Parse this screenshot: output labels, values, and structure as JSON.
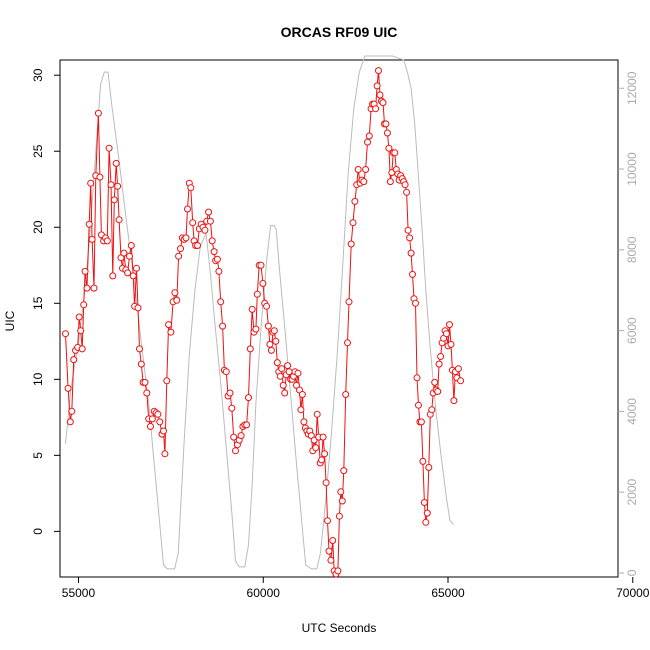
{
  "chart_data": {
    "type": "line",
    "title": "ORCAS RF09 UIC",
    "xlabel": "UTC Seconds",
    "ylabel": "UIC",
    "xlim": [
      54500,
      69600
    ],
    "ylim": [
      -3,
      31
    ],
    "y2lim": [
      -100,
      12700
    ],
    "x_ticks": [
      55000,
      60000,
      65000,
      70000
    ],
    "y_ticks": [
      0,
      5,
      10,
      15,
      20,
      25,
      30
    ],
    "y2_ticks": [
      0,
      2000,
      4000,
      6000,
      8000,
      10000,
      12000
    ],
    "colors": {
      "uic": "#ee1111",
      "altitude": "#bbbbbb"
    },
    "series": [
      {
        "role": "uic",
        "axis": "left",
        "points": [
          [
            54650,
            13.0
          ],
          [
            54720,
            9.4
          ],
          [
            54780,
            7.2
          ],
          [
            54820,
            7.9
          ],
          [
            54870,
            11.3
          ],
          [
            54920,
            11.9
          ],
          [
            54980,
            12.1
          ],
          [
            55020,
            14.1
          ],
          [
            55060,
            13.2
          ],
          [
            55100,
            12.0
          ],
          [
            55140,
            14.9
          ],
          [
            55180,
            17.1
          ],
          [
            55230,
            16.0
          ],
          [
            55290,
            20.2
          ],
          [
            55330,
            22.9
          ],
          [
            55370,
            19.2
          ],
          [
            55420,
            16.0
          ],
          [
            55470,
            23.4
          ],
          [
            55540,
            27.5
          ],
          [
            55580,
            23.3
          ],
          [
            55620,
            19.5
          ],
          [
            55680,
            19.1
          ],
          [
            55730,
            19.3
          ],
          [
            55780,
            19.1
          ],
          [
            55830,
            25.2
          ],
          [
            55880,
            22.8
          ],
          [
            55930,
            16.8
          ],
          [
            55970,
            21.8
          ],
          [
            56020,
            24.2
          ],
          [
            56060,
            22.7
          ],
          [
            56100,
            20.5
          ],
          [
            56150,
            18.0
          ],
          [
            56190,
            17.3
          ],
          [
            56230,
            18.3
          ],
          [
            56280,
            17.2
          ],
          [
            56330,
            17.0
          ],
          [
            56380,
            18.1
          ],
          [
            56430,
            18.8
          ],
          [
            56480,
            16.8
          ],
          [
            56520,
            14.8
          ],
          [
            56570,
            17.3
          ],
          [
            56610,
            14.7
          ],
          [
            56650,
            12.0
          ],
          [
            56700,
            11.0
          ],
          [
            56750,
            9.8
          ],
          [
            56800,
            9.8
          ],
          [
            56850,
            9.1
          ],
          [
            56900,
            7.4
          ],
          [
            56950,
            6.9
          ],
          [
            57000,
            7.4
          ],
          [
            57050,
            7.9
          ],
          [
            57100,
            7.8
          ],
          [
            57150,
            7.7
          ],
          [
            57200,
            7.2
          ],
          [
            57260,
            6.4
          ],
          [
            57300,
            6.6
          ],
          [
            57340,
            5.1
          ],
          [
            57390,
            9.9
          ],
          [
            57440,
            13.6
          ],
          [
            57500,
            13.1
          ],
          [
            57560,
            15.1
          ],
          [
            57610,
            15.7
          ],
          [
            57660,
            15.2
          ],
          [
            57710,
            18.1
          ],
          [
            57760,
            18.6
          ],
          [
            57810,
            19.3
          ],
          [
            57860,
            19.2
          ],
          [
            57910,
            19.3
          ],
          [
            57950,
            21.2
          ],
          [
            58000,
            22.9
          ],
          [
            58040,
            22.6
          ],
          [
            58090,
            20.3
          ],
          [
            58130,
            19.1
          ],
          [
            58170,
            18.8
          ],
          [
            58220,
            18.8
          ],
          [
            58270,
            19.9
          ],
          [
            58320,
            20.2
          ],
          [
            58370,
            20.0
          ],
          [
            58420,
            19.8
          ],
          [
            58470,
            20.4
          ],
          [
            58520,
            21.0
          ],
          [
            58570,
            20.4
          ],
          [
            58620,
            19.1
          ],
          [
            58670,
            18.4
          ],
          [
            58710,
            17.8
          ],
          [
            58760,
            17.9
          ],
          [
            58800,
            17.1
          ],
          [
            58850,
            15.1
          ],
          [
            58900,
            13.5
          ],
          [
            58950,
            10.6
          ],
          [
            59000,
            10.5
          ],
          [
            59050,
            8.9
          ],
          [
            59100,
            9.1
          ],
          [
            59150,
            8.1
          ],
          [
            59200,
            6.2
          ],
          [
            59250,
            5.3
          ],
          [
            59300,
            5.7
          ],
          [
            59350,
            6.0
          ],
          [
            59400,
            6.3
          ],
          [
            59450,
            6.9
          ],
          [
            59500,
            7.0
          ],
          [
            59550,
            7.0
          ],
          [
            59600,
            8.8
          ],
          [
            59650,
            12.0
          ],
          [
            59700,
            14.6
          ],
          [
            59750,
            13.1
          ],
          [
            59800,
            13.3
          ],
          [
            59840,
            15.6
          ],
          [
            59890,
            17.5
          ],
          [
            59940,
            17.5
          ],
          [
            59990,
            16.3
          ],
          [
            60040,
            15.0
          ],
          [
            60090,
            14.8
          ],
          [
            60140,
            13.5
          ],
          [
            60180,
            12.3
          ],
          [
            60220,
            11.9
          ],
          [
            60260,
            13.1
          ],
          [
            60300,
            13.2
          ],
          [
            60340,
            12.5
          ],
          [
            60380,
            11.1
          ],
          [
            60420,
            10.5
          ],
          [
            60460,
            10.2
          ],
          [
            60500,
            10.7
          ],
          [
            60540,
            9.6
          ],
          [
            60580,
            9.1
          ],
          [
            60620,
            10.3
          ],
          [
            60660,
            10.9
          ],
          [
            60700,
            10.5
          ],
          [
            60740,
            10.0
          ],
          [
            60780,
            10.0
          ],
          [
            60820,
            10.2
          ],
          [
            60860,
            10.5
          ],
          [
            60900,
            9.6
          ],
          [
            60940,
            10.4
          ],
          [
            60980,
            9.3
          ],
          [
            61020,
            8.0
          ],
          [
            61060,
            9.0
          ],
          [
            61100,
            7.2
          ],
          [
            61140,
            6.8
          ],
          [
            61180,
            6.6
          ],
          [
            61220,
            6.4
          ],
          [
            61260,
            6.6
          ],
          [
            61300,
            6.3
          ],
          [
            61340,
            5.3
          ],
          [
            61380,
            6.0
          ],
          [
            61420,
            5.5
          ],
          [
            61460,
            7.7
          ],
          [
            61500,
            6.2
          ],
          [
            61540,
            4.5
          ],
          [
            61580,
            4.7
          ],
          [
            61620,
            6.2
          ],
          [
            61660,
            5.1
          ],
          [
            61700,
            3.2
          ],
          [
            61740,
            0.7
          ],
          [
            61780,
            -1.3
          ],
          [
            61830,
            -1.9
          ],
          [
            61880,
            -0.6
          ],
          [
            61920,
            -2.6
          ],
          [
            61970,
            -2.8
          ],
          [
            62020,
            -2.6
          ],
          [
            62060,
            1.0
          ],
          [
            62100,
            2.6
          ],
          [
            62140,
            2.0
          ],
          [
            62180,
            4.0
          ],
          [
            62230,
            9.0
          ],
          [
            62280,
            12.4
          ],
          [
            62320,
            15.1
          ],
          [
            62380,
            18.9
          ],
          [
            62430,
            20.3
          ],
          [
            62480,
            21.7
          ],
          [
            62530,
            22.8
          ],
          [
            62570,
            23.8
          ],
          [
            62620,
            22.9
          ],
          [
            62670,
            23.1
          ],
          [
            62720,
            23.0
          ],
          [
            62770,
            23.8
          ],
          [
            62820,
            25.6
          ],
          [
            62870,
            26.0
          ],
          [
            62920,
            27.8
          ],
          [
            62960,
            28.1
          ],
          [
            63000,
            28.1
          ],
          [
            63040,
            27.8
          ],
          [
            63080,
            29.3
          ],
          [
            63120,
            30.3
          ],
          [
            63160,
            28.7
          ],
          [
            63200,
            28.3
          ],
          [
            63240,
            28.2
          ],
          [
            63280,
            26.8
          ],
          [
            63320,
            26.8
          ],
          [
            63360,
            26.2
          ],
          [
            63400,
            25.2
          ],
          [
            63440,
            23.0
          ],
          [
            63480,
            23.6
          ],
          [
            63520,
            24.9
          ],
          [
            63560,
            24.9
          ],
          [
            63600,
            23.8
          ],
          [
            63640,
            23.5
          ],
          [
            63680,
            23.1
          ],
          [
            63720,
            23.4
          ],
          [
            63760,
            23.2
          ],
          [
            63800,
            23.0
          ],
          [
            63840,
            22.8
          ],
          [
            63880,
            22.3
          ],
          [
            63920,
            19.8
          ],
          [
            63960,
            19.3
          ],
          [
            64000,
            18.3
          ],
          [
            64040,
            16.9
          ],
          [
            64080,
            15.3
          ],
          [
            64120,
            15.0
          ],
          [
            64160,
            10.1
          ],
          [
            64200,
            8.3
          ],
          [
            64240,
            7.2
          ],
          [
            64280,
            7.2
          ],
          [
            64320,
            4.6
          ],
          [
            64360,
            1.9
          ],
          [
            64400,
            0.6
          ],
          [
            64440,
            1.2
          ],
          [
            64480,
            4.2
          ],
          [
            64520,
            7.7
          ],
          [
            64560,
            8.0
          ],
          [
            64600,
            9.1
          ],
          [
            64640,
            9.8
          ],
          [
            64680,
            9.3
          ],
          [
            64720,
            9.2
          ],
          [
            64760,
            11.0
          ],
          [
            64800,
            11.5
          ],
          [
            64840,
            12.4
          ],
          [
            64880,
            12.7
          ],
          [
            64920,
            13.2
          ],
          [
            64960,
            13.0
          ],
          [
            65000,
            12.2
          ],
          [
            65040,
            13.6
          ],
          [
            65080,
            12.3
          ],
          [
            65120,
            10.6
          ],
          [
            65160,
            8.6
          ],
          [
            65200,
            10.5
          ],
          [
            65240,
            10.1
          ],
          [
            65280,
            10.7
          ],
          [
            65340,
            9.9
          ]
        ]
      },
      {
        "role": "altitude",
        "axis": "right",
        "points": [
          [
            54650,
            3200
          ],
          [
            54800,
            4600
          ],
          [
            55000,
            5700
          ],
          [
            55150,
            6800
          ],
          [
            55300,
            8300
          ],
          [
            55450,
            10200
          ],
          [
            55600,
            12100
          ],
          [
            55700,
            12400
          ],
          [
            55800,
            12400
          ],
          [
            55900,
            11600
          ],
          [
            56100,
            10200
          ],
          [
            56300,
            8700
          ],
          [
            56500,
            7300
          ],
          [
            56700,
            5700
          ],
          [
            56900,
            4200
          ],
          [
            57050,
            2700
          ],
          [
            57200,
            1200
          ],
          [
            57300,
            200
          ],
          [
            57400,
            100
          ],
          [
            57600,
            100
          ],
          [
            57700,
            500
          ],
          [
            57850,
            3100
          ],
          [
            58000,
            5400
          ],
          [
            58150,
            7000
          ],
          [
            58300,
            8100
          ],
          [
            58450,
            8400
          ],
          [
            58550,
            7600
          ],
          [
            58700,
            6100
          ],
          [
            58850,
            4700
          ],
          [
            59000,
            3100
          ],
          [
            59150,
            1500
          ],
          [
            59250,
            300
          ],
          [
            59350,
            150
          ],
          [
            59500,
            150
          ],
          [
            59600,
            700
          ],
          [
            59700,
            2200
          ],
          [
            59800,
            4200
          ],
          [
            59950,
            6200
          ],
          [
            60100,
            7800
          ],
          [
            60200,
            8600
          ],
          [
            60300,
            8600
          ],
          [
            60350,
            8500
          ],
          [
            60450,
            7400
          ],
          [
            60600,
            5900
          ],
          [
            60750,
            4300
          ],
          [
            60900,
            2700
          ],
          [
            61050,
            1200
          ],
          [
            61150,
            200
          ],
          [
            61300,
            100
          ],
          [
            61450,
            100
          ],
          [
            61550,
            500
          ],
          [
            61700,
            1900
          ],
          [
            61850,
            3500
          ],
          [
            62000,
            5400
          ],
          [
            62150,
            7600
          ],
          [
            62300,
            9900
          ],
          [
            62450,
            11500
          ],
          [
            62600,
            12400
          ],
          [
            62750,
            12800
          ],
          [
            62900,
            12800
          ],
          [
            63200,
            12800
          ],
          [
            63500,
            12800
          ],
          [
            63800,
            12700
          ],
          [
            63900,
            12400
          ],
          [
            64000,
            12000
          ],
          [
            64100,
            11100
          ],
          [
            64200,
            9800
          ],
          [
            64300,
            8500
          ],
          [
            64400,
            7000
          ],
          [
            64500,
            5800
          ],
          [
            64650,
            4200
          ],
          [
            64800,
            3000
          ],
          [
            64950,
            1900
          ],
          [
            65050,
            1300
          ],
          [
            65150,
            1200
          ]
        ]
      }
    ]
  }
}
